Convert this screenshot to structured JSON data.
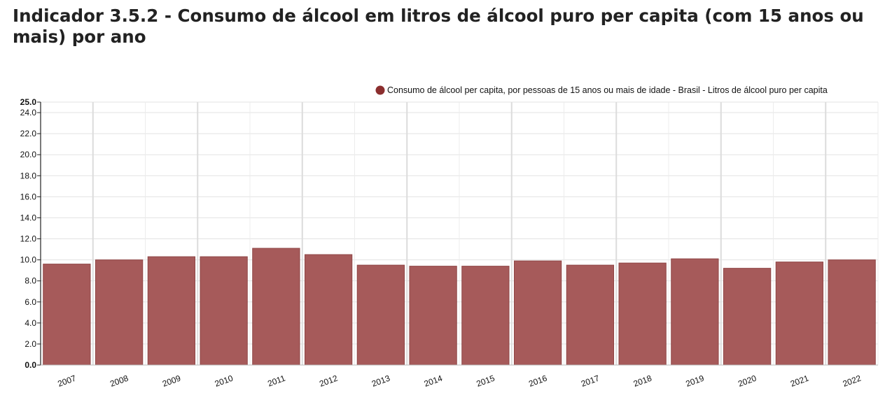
{
  "title": "Indicador 3.5.2 - Consumo de álcool em litros de álcool puro per capita (com 15 anos ou mais) por ano",
  "colors": {
    "bar": "#a65a5a",
    "bar_stroke": "#8f4646",
    "legend_marker": "#8b2e2e",
    "grid": "#e3e3e3"
  },
  "chart_data": {
    "type": "bar",
    "categories": [
      "2007",
      "2008",
      "2009",
      "2010",
      "2011",
      "2012",
      "2013",
      "2014",
      "2015",
      "2016",
      "2017",
      "2018",
      "2019",
      "2020",
      "2021",
      "2022"
    ],
    "series": [
      {
        "name": "Consumo de álcool per capita, por pessoas de 15 anos ou mais de idade - Brasil - Litros de álcool puro per capita",
        "values": [
          9.6,
          10.0,
          10.3,
          10.3,
          11.1,
          10.5,
          9.5,
          9.4,
          9.4,
          9.9,
          9.5,
          9.7,
          10.1,
          9.2,
          9.8,
          10.0
        ]
      }
    ],
    "ylim": [
      0,
      25
    ],
    "yticks": [
      "0.0",
      "2.0",
      "4.0",
      "6.0",
      "8.0",
      "10.0",
      "12.0",
      "14.0",
      "16.0",
      "18.0",
      "20.0",
      "22.0",
      "24.0",
      "25.0"
    ],
    "xlabel": "",
    "ylabel": "",
    "legend": "top-right",
    "grid": true
  }
}
